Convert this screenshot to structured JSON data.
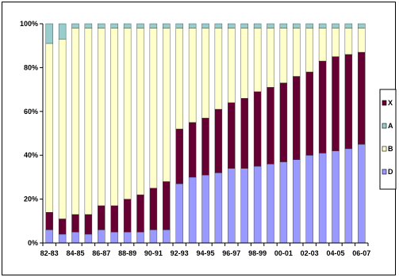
{
  "chart_data": {
    "type": "bar",
    "stacked": "percent",
    "title": "",
    "xlabel": "",
    "ylabel": "",
    "ylim": [
      0,
      100
    ],
    "y_tick_labels": [
      "0%",
      "20%",
      "40%",
      "60%",
      "80%",
      "100%"
    ],
    "y_ticks": [
      0,
      20,
      40,
      60,
      80,
      100
    ],
    "grid": false,
    "legend_position": "right",
    "categories": [
      "82-83",
      "83-84",
      "84-85",
      "85-86",
      "86-87",
      "87-88",
      "88-89",
      "89-90",
      "90-91",
      "91-92",
      "92-93",
      "93-94",
      "94-95",
      "95-96",
      "96-97",
      "97-98",
      "98-99",
      "99-00",
      "00-01",
      "01-02",
      "02-03",
      "03-04",
      "04-05",
      "05-06",
      "06-07"
    ],
    "x_tick_labels": [
      "82-83",
      "84-85",
      "86-87",
      "88-89",
      "90-91",
      "92-93",
      "94-95",
      "96-97",
      "98-99",
      "00-01",
      "02-03",
      "04-05",
      "06-07"
    ],
    "series": [
      {
        "name": "D",
        "color": "#9999ff",
        "values": [
          6,
          4,
          5,
          4,
          6,
          5,
          5,
          5,
          6,
          6,
          27,
          30,
          31,
          32,
          34,
          34,
          35,
          36,
          37,
          38,
          40,
          41,
          42,
          43,
          45
        ]
      },
      {
        "name": "X",
        "color": "#660033",
        "values": [
          8,
          7,
          8,
          9,
          11,
          12,
          15,
          17,
          19,
          22,
          25,
          25,
          26,
          29,
          30,
          32,
          34,
          35,
          36,
          38,
          38,
          42,
          43,
          43,
          42
        ]
      },
      {
        "name": "B",
        "color": "#ffffcc",
        "values": [
          77,
          82,
          85,
          85,
          81,
          81,
          78,
          76,
          73,
          70,
          46,
          43,
          41,
          37,
          34,
          32,
          29,
          27,
          25,
          22,
          20,
          15,
          13,
          12,
          11
        ]
      },
      {
        "name": "A",
        "color": "#99cccc",
        "values": [
          9,
          7,
          2,
          2,
          2,
          2,
          2,
          2,
          2,
          2,
          2,
          2,
          2,
          2,
          2,
          2,
          2,
          2,
          2,
          2,
          2,
          2,
          2,
          2,
          2
        ]
      }
    ],
    "legend_order": [
      "X",
      "A",
      "B",
      "D"
    ]
  }
}
